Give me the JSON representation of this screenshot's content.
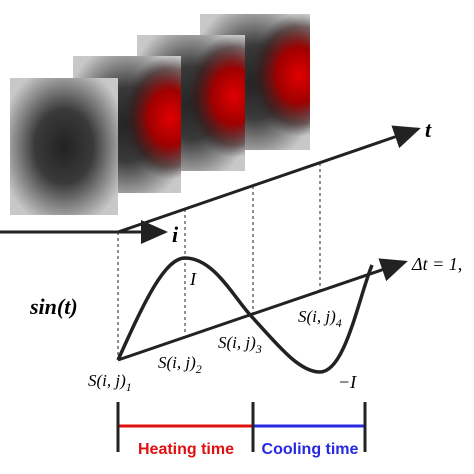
{
  "axes": {
    "time": "t",
    "space": "i",
    "delta": "Δt = 1,"
  },
  "curve": {
    "label": "sin(t)",
    "peak": "I",
    "trough": "−I"
  },
  "samples": [
    {
      "label": "S(i, j)",
      "sub": "1"
    },
    {
      "label": "S(i, j)",
      "sub": "2"
    },
    {
      "label": "S(i, j)",
      "sub": "3"
    },
    {
      "label": "S(i, j)",
      "sub": "4"
    }
  ],
  "phases": {
    "heating": "Heating time",
    "cooling": "Cooling time"
  }
}
